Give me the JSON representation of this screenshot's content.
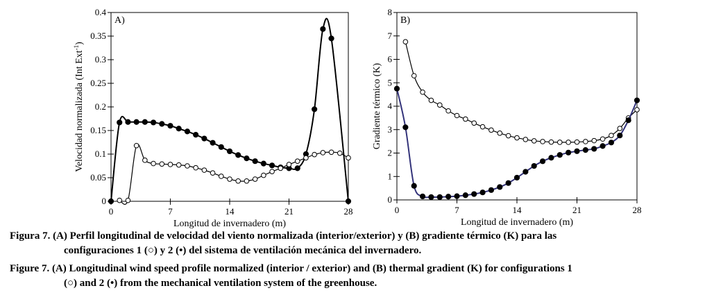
{
  "chart_data": [
    {
      "type": "scatter",
      "panel_label": "A)",
      "title": "",
      "xlabel": "Longitud de invernadero (m)",
      "ylabel": "Velocidad normalizada (Int Ext",
      "ylabel_sup": "-1",
      "ylabel_end": ")",
      "xlim": [
        0,
        28
      ],
      "ylim": [
        0,
        0.4
      ],
      "xticks": [
        0,
        7,
        14,
        21,
        28
      ],
      "yticks": [
        0,
        0.05,
        0.1,
        0.15,
        0.2,
        0.25,
        0.3,
        0.35,
        0.4
      ],
      "ytick_labels": [
        "0",
        "0.05",
        "0.1",
        "0.15",
        "0.2",
        "0.25",
        "0.3",
        "0.35",
        "0.4"
      ],
      "series": [
        {
          "name": "configuración 2 (•)",
          "marker": "filled",
          "line_color": "#000000",
          "x": [
            0,
            1,
            2,
            3,
            4,
            5,
            6,
            7,
            8,
            9,
            10,
            11,
            12,
            13,
            14,
            15,
            16,
            17,
            18,
            19,
            20,
            21,
            22,
            23,
            24,
            25,
            26,
            28
          ],
          "y": [
            0,
            0.167,
            0.168,
            0.168,
            0.168,
            0.167,
            0.164,
            0.16,
            0.154,
            0.148,
            0.141,
            0.133,
            0.124,
            0.115,
            0.106,
            0.098,
            0.091,
            0.085,
            0.08,
            0.076,
            0.072,
            0.07,
            0.07,
            0.1,
            0.195,
            0.365,
            0.345,
            0
          ]
        },
        {
          "name": "configuración 1 (○)",
          "marker": "open",
          "line_color": "#000000",
          "x": [
            1,
            2,
            3,
            4,
            5,
            6,
            7,
            8,
            9,
            10,
            11,
            12,
            13,
            14,
            15,
            16,
            17,
            18,
            19,
            20,
            21,
            22,
            23,
            24,
            25,
            26,
            27,
            28
          ],
          "y": [
            0.002,
            0.002,
            0.118,
            0.087,
            0.08,
            0.079,
            0.078,
            0.077,
            0.075,
            0.071,
            0.066,
            0.06,
            0.053,
            0.047,
            0.043,
            0.043,
            0.047,
            0.055,
            0.063,
            0.07,
            0.078,
            0.085,
            0.092,
            0.099,
            0.103,
            0.104,
            0.102,
            0.092
          ]
        }
      ]
    },
    {
      "type": "scatter",
      "panel_label": "B)",
      "title": "",
      "xlabel": "Longitud de invernadero (m)",
      "ylabel": "Gradiente térmico (K)",
      "xlim": [
        0,
        28
      ],
      "ylim": [
        0,
        8
      ],
      "xticks": [
        0,
        7,
        14,
        21,
        28
      ],
      "yticks": [
        0,
        1,
        2,
        3,
        4,
        5,
        6,
        7,
        8
      ],
      "ytick_labels": [
        "0",
        "1",
        "2",
        "3",
        "4",
        "5",
        "6",
        "7",
        "8"
      ],
      "series": [
        {
          "name": "configuración 1 (○)",
          "marker": "open",
          "line_color": "#000000",
          "x": [
            1,
            2,
            3,
            4,
            5,
            6,
            7,
            8,
            9,
            10,
            11,
            12,
            13,
            14,
            15,
            16,
            17,
            18,
            19,
            20,
            21,
            22,
            23,
            24,
            25,
            26,
            27,
            28
          ],
          "y": [
            6.75,
            5.3,
            4.6,
            4.25,
            4.05,
            3.8,
            3.6,
            3.45,
            3.28,
            3.12,
            2.98,
            2.85,
            2.74,
            2.65,
            2.58,
            2.52,
            2.49,
            2.47,
            2.46,
            2.46,
            2.47,
            2.49,
            2.53,
            2.6,
            2.75,
            3.05,
            3.5,
            3.85
          ]
        },
        {
          "name": "configuración 2 (•)",
          "marker": "filled",
          "line_color": "#33337a",
          "x": [
            0,
            1,
            2,
            3,
            4,
            5,
            6,
            7,
            8,
            9,
            10,
            11,
            12,
            13,
            14,
            15,
            16,
            17,
            18,
            19,
            20,
            21,
            22,
            23,
            24,
            25,
            26,
            27,
            28
          ],
          "y": [
            4.75,
            3.1,
            0.6,
            0.15,
            0.12,
            0.12,
            0.14,
            0.16,
            0.2,
            0.25,
            0.32,
            0.42,
            0.55,
            0.72,
            0.95,
            1.2,
            1.45,
            1.65,
            1.8,
            1.92,
            2.02,
            2.08,
            2.13,
            2.18,
            2.3,
            2.45,
            2.75,
            3.4,
            4.25
          ]
        }
      ]
    }
  ],
  "captions": {
    "es_lead": "Figura 7.",
    "es_line1": "(A) Perfil longitudinal de velocidad del viento normalizada (interior/exterior) y (B) gradiente térmico (K) para las",
    "es_line2": "configuraciones 1 (○) y 2 (•) del sistema de ventilación mecánica del invernadero.",
    "en_lead": "Figure 7.",
    "en_line1": "(A) Longitudinal wind speed profile normalized (interior / exterior) and (B) thermal gradient (K) for configurations 1",
    "en_line2": "(○) and 2 (•) from the mechanical ventilation system of the greenhouse."
  }
}
